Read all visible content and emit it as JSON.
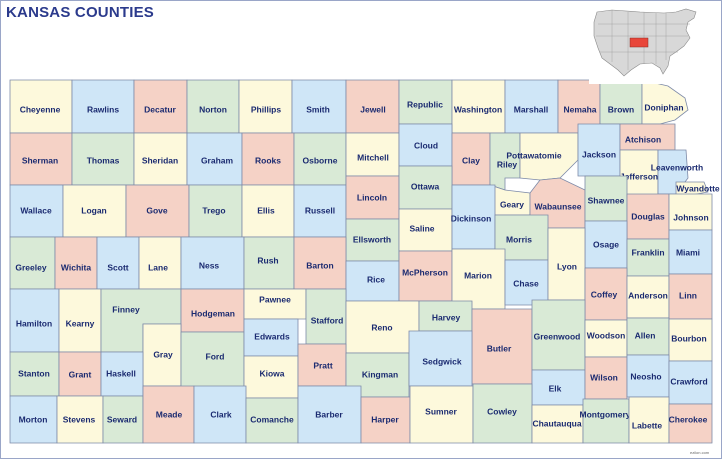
{
  "title": "KANSAS COUNTIES",
  "credit": "ezilon.com",
  "colors": {
    "yellow": "#fdf9dc",
    "blue": "#cfe6f7",
    "pink": "#f5d2c6",
    "green": "#d9ead6",
    "inset_land": "#d8d8d8",
    "inset_highlight": "#e8463a"
  },
  "counties": [
    {
      "id": "cheyenne",
      "name": "Cheyenne"
    },
    {
      "id": "rawlins",
      "name": "Rawlins"
    },
    {
      "id": "decatur",
      "name": "Decatur"
    },
    {
      "id": "norton",
      "name": "Norton"
    },
    {
      "id": "phillips",
      "name": "Phillips"
    },
    {
      "id": "smith",
      "name": "Smith"
    },
    {
      "id": "jewell",
      "name": "Jewell"
    },
    {
      "id": "republic",
      "name": "Republic"
    },
    {
      "id": "washington",
      "name": "Washington"
    },
    {
      "id": "marshall",
      "name": "Marshall"
    },
    {
      "id": "nemaha",
      "name": "Nemaha"
    },
    {
      "id": "brown",
      "name": "Brown"
    },
    {
      "id": "doniphan",
      "name": "Doniphan"
    },
    {
      "id": "sherman",
      "name": "Sherman"
    },
    {
      "id": "thomas",
      "name": "Thomas"
    },
    {
      "id": "sheridan",
      "name": "Sheridan"
    },
    {
      "id": "graham",
      "name": "Graham"
    },
    {
      "id": "rooks",
      "name": "Rooks"
    },
    {
      "id": "osborne",
      "name": "Osborne"
    },
    {
      "id": "mitchell",
      "name": "Mitchell"
    },
    {
      "id": "cloud",
      "name": "Cloud"
    },
    {
      "id": "clay",
      "name": "Clay"
    },
    {
      "id": "riley",
      "name": "Riley"
    },
    {
      "id": "pottawatomie",
      "name": "Pottawatomie"
    },
    {
      "id": "jackson",
      "name": "Jackson"
    },
    {
      "id": "atchison",
      "name": "Atchison"
    },
    {
      "id": "jefferson",
      "name": "Jefferson"
    },
    {
      "id": "leavenworth",
      "name": "Leavenworth"
    },
    {
      "id": "wyandotte",
      "name": "Wyandotte"
    },
    {
      "id": "wallace",
      "name": "Wallace"
    },
    {
      "id": "logan",
      "name": "Logan"
    },
    {
      "id": "gove",
      "name": "Gove"
    },
    {
      "id": "trego",
      "name": "Trego"
    },
    {
      "id": "ellis",
      "name": "Ellis"
    },
    {
      "id": "russell",
      "name": "Russell"
    },
    {
      "id": "lincoln",
      "name": "Lincoln"
    },
    {
      "id": "ottawa",
      "name": "Ottawa"
    },
    {
      "id": "geary",
      "name": "Geary"
    },
    {
      "id": "wabaunsee",
      "name": "Wabaunsee"
    },
    {
      "id": "shawnee",
      "name": "Shawnee"
    },
    {
      "id": "douglas",
      "name": "Douglas"
    },
    {
      "id": "johnson",
      "name": "Johnson"
    },
    {
      "id": "ellsworth",
      "name": "Ellsworth"
    },
    {
      "id": "saline",
      "name": "Saline"
    },
    {
      "id": "dickinson",
      "name": "Dickinson"
    },
    {
      "id": "morris",
      "name": "Morris"
    },
    {
      "id": "osage",
      "name": "Osage"
    },
    {
      "id": "franklin",
      "name": "Franklin"
    },
    {
      "id": "miami",
      "name": "Miami"
    },
    {
      "id": "greeley",
      "name": "Greeley"
    },
    {
      "id": "wichita",
      "name": "Wichita"
    },
    {
      "id": "scott",
      "name": "Scott"
    },
    {
      "id": "lane",
      "name": "Lane"
    },
    {
      "id": "ness",
      "name": "Ness"
    },
    {
      "id": "rush",
      "name": "Rush"
    },
    {
      "id": "barton",
      "name": "Barton"
    },
    {
      "id": "rice",
      "name": "Rice"
    },
    {
      "id": "mcpherson",
      "name": "McPherson"
    },
    {
      "id": "marion",
      "name": "Marion"
    },
    {
      "id": "chase",
      "name": "Chase"
    },
    {
      "id": "lyon",
      "name": "Lyon"
    },
    {
      "id": "coffey",
      "name": "Coffey"
    },
    {
      "id": "anderson",
      "name": "Anderson"
    },
    {
      "id": "linn",
      "name": "Linn"
    },
    {
      "id": "hamilton",
      "name": "Hamilton"
    },
    {
      "id": "kearny",
      "name": "Kearny"
    },
    {
      "id": "finney",
      "name": "Finney"
    },
    {
      "id": "hodgeman",
      "name": "Hodgeman"
    },
    {
      "id": "pawnee",
      "name": "Pawnee"
    },
    {
      "id": "stafford",
      "name": "Stafford"
    },
    {
      "id": "reno",
      "name": "Reno"
    },
    {
      "id": "harvey",
      "name": "Harvey"
    },
    {
      "id": "butler",
      "name": "Butler"
    },
    {
      "id": "greenwood",
      "name": "Greenwood"
    },
    {
      "id": "woodson",
      "name": "Woodson"
    },
    {
      "id": "allen",
      "name": "Allen"
    },
    {
      "id": "bourbon",
      "name": "Bourbon"
    },
    {
      "id": "gray",
      "name": "Gray"
    },
    {
      "id": "ford",
      "name": "Ford"
    },
    {
      "id": "edwards",
      "name": "Edwards"
    },
    {
      "id": "kiowa",
      "name": "Kiowa"
    },
    {
      "id": "pratt",
      "name": "Pratt"
    },
    {
      "id": "kingman",
      "name": "Kingman"
    },
    {
      "id": "sedgwick",
      "name": "Sedgwick"
    },
    {
      "id": "elk",
      "name": "Elk"
    },
    {
      "id": "wilson",
      "name": "Wilson"
    },
    {
      "id": "neosho",
      "name": "Neosho"
    },
    {
      "id": "crawford",
      "name": "Crawford"
    },
    {
      "id": "stanton",
      "name": "Stanton"
    },
    {
      "id": "grant",
      "name": "Grant"
    },
    {
      "id": "haskell",
      "name": "Haskell"
    },
    {
      "id": "morton",
      "name": "Morton"
    },
    {
      "id": "stevens",
      "name": "Stevens"
    },
    {
      "id": "seward",
      "name": "Seward"
    },
    {
      "id": "meade",
      "name": "Meade"
    },
    {
      "id": "clark",
      "name": "Clark"
    },
    {
      "id": "comanche",
      "name": "Comanche"
    },
    {
      "id": "barber",
      "name": "Barber"
    },
    {
      "id": "harper",
      "name": "Harper"
    },
    {
      "id": "sumner",
      "name": "Sumner"
    },
    {
      "id": "cowley",
      "name": "Cowley"
    },
    {
      "id": "chautauqua",
      "name": "Chautauqua"
    },
    {
      "id": "montgomery",
      "name": "Montgomery"
    },
    {
      "id": "labette",
      "name": "Labette"
    },
    {
      "id": "cherokee",
      "name": "Cherokee"
    }
  ]
}
